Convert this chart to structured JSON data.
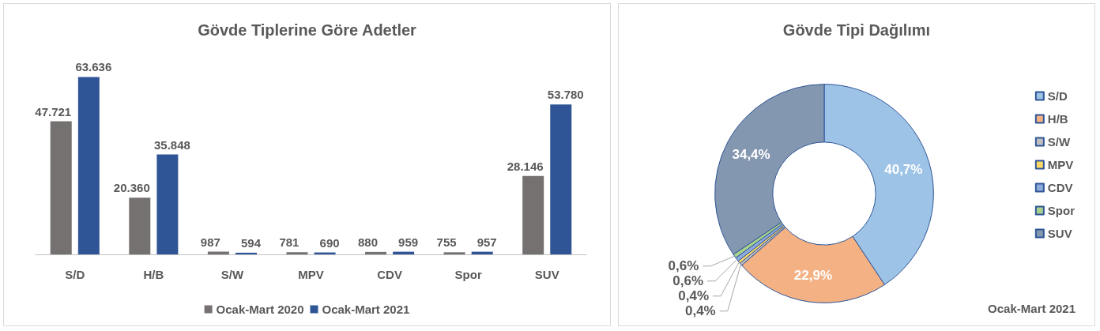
{
  "chart_data": [
    {
      "type": "bar",
      "title": "Gövde Tiplerine Göre Adetler",
      "categories": [
        "S/D",
        "H/B",
        "S/W",
        "MPV",
        "CDV",
        "Spor",
        "SUV"
      ],
      "series": [
        {
          "name": "Ocak-Mart 2020",
          "color": "#767171",
          "values": [
            47721,
            20360,
            987,
            781,
            880,
            755,
            28146
          ],
          "value_labels": [
            "47.721",
            "20.360",
            "987",
            "781",
            "880",
            "755",
            "28.146"
          ]
        },
        {
          "name": "Ocak-Mart 2021",
          "color": "#2f5597",
          "values": [
            63636,
            35848,
            594,
            690,
            959,
            957,
            53780
          ],
          "value_labels": [
            "63.636",
            "35.848",
            "594",
            "690",
            "959",
            "957",
            "53.780"
          ]
        }
      ],
      "legend": "bottom"
    },
    {
      "type": "donut",
      "title": "Gövde Tipi Dağılımı",
      "categories": [
        "S/D",
        "H/B",
        "S/W",
        "MPV",
        "CDV",
        "Spor",
        "SUV"
      ],
      "values": [
        40.7,
        22.9,
        0.4,
        0.4,
        0.6,
        0.6,
        34.4
      ],
      "value_labels": [
        "40,7%",
        "22,9%",
        "0,4%",
        "0,4%",
        "0,6%",
        "0,6%",
        "34,4%"
      ],
      "colors": [
        "#9dc3e6",
        "#f4b183",
        "#bfbfbf",
        "#ffd966",
        "#8faadc",
        "#a9d18e",
        "#8497b0"
      ],
      "legend": "right",
      "annotations": [
        "Ocak-Mart 2021"
      ]
    }
  ]
}
